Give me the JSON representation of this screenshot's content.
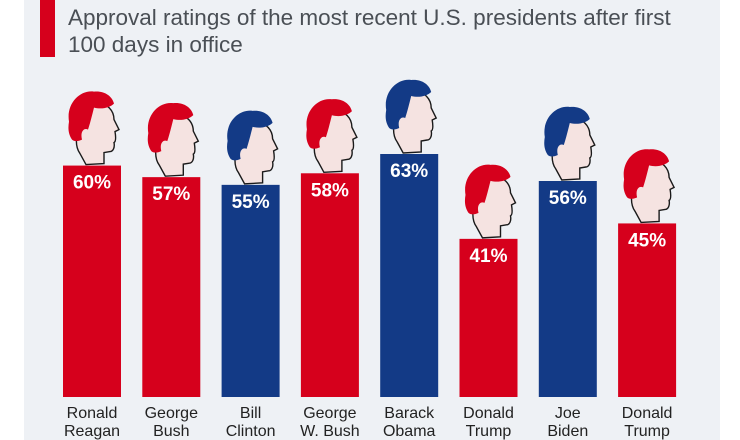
{
  "title": "Approval ratings of the most recent U.S. presidents after first 100 days in office",
  "colors": {
    "republican": "#d6001c",
    "democrat": "#133a86",
    "accent": "#d6001c"
  },
  "chart_data": {
    "type": "bar",
    "title": "Approval ratings of the most recent U.S. presidents after first 100 days in office",
    "categories": [
      [
        "Ronald",
        "Reagan"
      ],
      [
        "George",
        "Bush"
      ],
      [
        "Bill",
        "Clinton"
      ],
      [
        "George",
        "W. Bush"
      ],
      [
        "Barack",
        "Obama"
      ],
      [
        "Donald",
        "Trump"
      ],
      [
        "Joe",
        "Biden"
      ],
      [
        "Donald",
        "Trump"
      ]
    ],
    "values": [
      60,
      57,
      55,
      58,
      63,
      41,
      56,
      45
    ],
    "value_labels": [
      "60%",
      "57%",
      "55%",
      "58%",
      "63%",
      "41%",
      "56%",
      "45%"
    ],
    "party": [
      "republican",
      "republican",
      "democrat",
      "republican",
      "democrat",
      "republican",
      "democrat",
      "republican"
    ],
    "xlabel": "",
    "ylabel": "",
    "ylim": [
      0,
      63
    ],
    "grid": false,
    "legend": "none",
    "icons": "head-silhouette"
  }
}
